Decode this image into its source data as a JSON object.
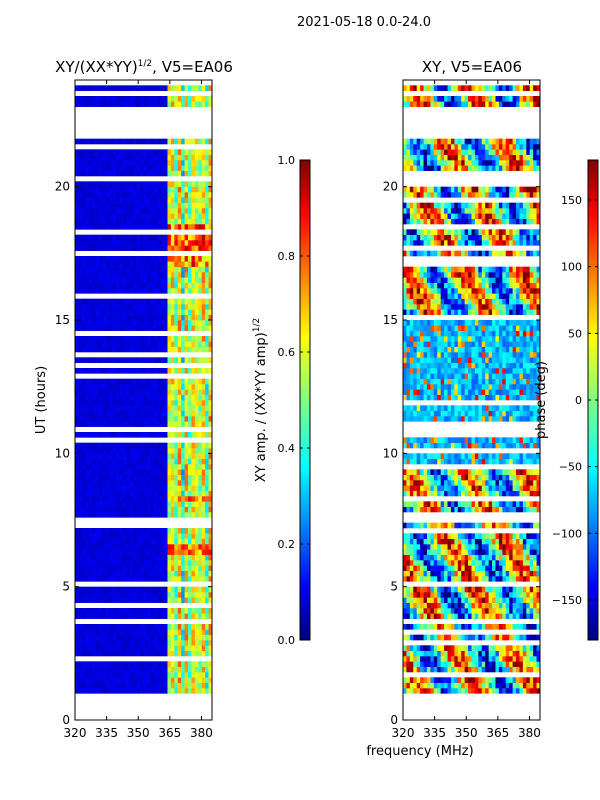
{
  "figure_title": "2021-05-18 0.0-24.0",
  "shared_xlabel": "frequency (MHz)",
  "chart_data": [
    {
      "type": "heatmap",
      "title_text": "XY/(XX*YY)",
      "title_exp": "1/2",
      "title_suffix": ", V5=EA06",
      "xlabel": "",
      "ylabel": "UT (hours)",
      "xlim": [
        320,
        385
      ],
      "ylim": [
        0,
        24
      ],
      "xticks": [
        320,
        335,
        350,
        365,
        380
      ],
      "yticks": [
        0,
        5,
        10,
        15,
        20
      ],
      "data_extent_hours": [
        1.0,
        24.0
      ],
      "missing_hours": [
        [
          21.8,
          23.0
        ],
        [
          23.45,
          23.7
        ]
      ],
      "colorbar": {
        "label_text": "XY amp. / (XX*YY amp)",
        "label_exp": "1/2",
        "range": [
          0.0,
          1.0
        ],
        "ticks": [
          0.0,
          0.2,
          0.4,
          0.6,
          0.8,
          1.0
        ],
        "tick_labels": [
          "0.0",
          "0.2",
          "0.4",
          "0.6",
          "0.8",
          "1.0"
        ]
      }
    },
    {
      "type": "heatmap",
      "title_text": "XY, V5=EA06",
      "xlabel": "frequency (MHz)",
      "ylabel": "",
      "xlim": [
        320,
        385
      ],
      "ylim": [
        0,
        24
      ],
      "xticks": [
        320,
        335,
        350,
        365,
        380
      ],
      "yticks": [
        0,
        5,
        10,
        15,
        20
      ],
      "data_extent_hours": [
        1.0,
        24.0
      ],
      "missing_hours": [
        [
          21.8,
          23.0
        ],
        [
          23.45,
          23.7
        ]
      ],
      "colorbar": {
        "label_text": "phase (deg)",
        "range": [
          -180,
          180
        ],
        "ticks": [
          -150,
          -100,
          -50,
          0,
          50,
          100,
          150
        ],
        "tick_labels": [
          "−150",
          "−100",
          "−50",
          "0",
          "50",
          "100",
          "150"
        ]
      }
    }
  ],
  "colors": {
    "jet": [
      "#00007f",
      "#0000ff",
      "#007fff",
      "#00ffff",
      "#7fff7f",
      "#ffff00",
      "#ff7f00",
      "#ff0000",
      "#7f0000"
    ]
  }
}
